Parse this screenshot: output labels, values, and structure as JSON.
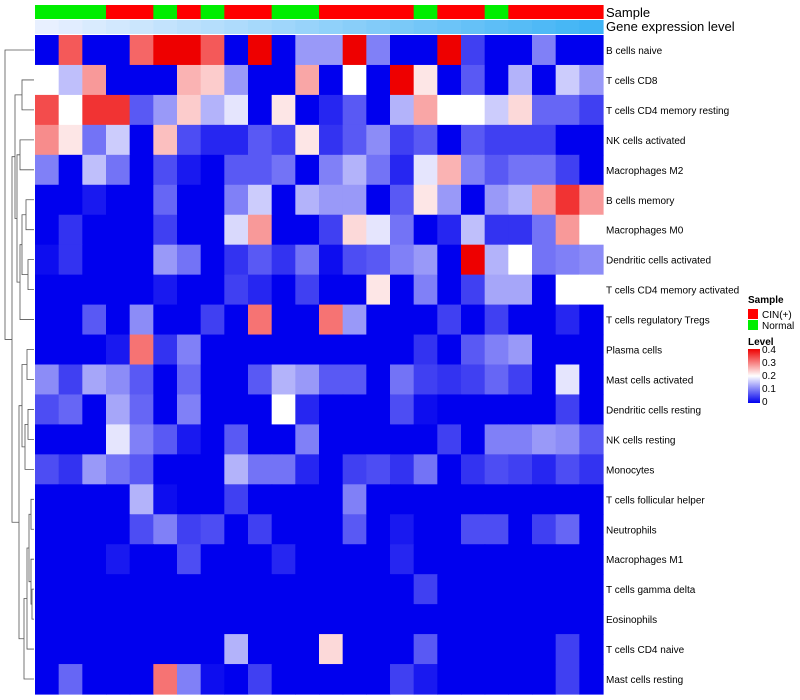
{
  "chart_data": {
    "type": "heatmap",
    "title": "",
    "annotation_tracks": [
      "Sample",
      "Gene expression level"
    ],
    "sample_groups": [
      "N",
      "N",
      "N",
      "C",
      "C",
      "N",
      "C",
      "N",
      "C",
      "C",
      "N",
      "N",
      "C",
      "C",
      "C",
      "C",
      "N",
      "C",
      "C",
      "N",
      "C",
      "C",
      "C",
      "C"
    ],
    "sample_colors": {
      "C": "#ff0000",
      "N": "#00ee00"
    },
    "rows": [
      "B cells naive",
      "T cells CD8",
      "T cells CD4 memory resting",
      "NK cells activated",
      "Macrophages M2",
      "B cells memory",
      "Macrophages M0",
      "Dendritic cells activated",
      "T cells CD4 memory activated",
      "T cells regulatory  Tregs",
      "Plasma cells",
      "Mast cells activated",
      "Dendritic cells resting",
      "NK cells resting",
      "Monocytes",
      "T cells follicular helper",
      "Neutrophils",
      "Macrophages M1",
      "T cells gamma delta",
      "Eosinophils",
      "T cells CD4 naive",
      "Mast cells resting"
    ],
    "values": [
      [
        0.0,
        0.33,
        0.0,
        0.0,
        0.32,
        0.4,
        0.4,
        0.33,
        0.0,
        0.4,
        0.0,
        0.12,
        0.12,
        0.4,
        0.1,
        0.0,
        0.0,
        0.4,
        0.05,
        0.0,
        0.0,
        0.1,
        0.0,
        0.0
      ],
      [
        0.2,
        0.15,
        0.28,
        0.0,
        0.0,
        0.0,
        0.26,
        0.24,
        0.12,
        0.0,
        0.0,
        0.27,
        0.0,
        0.2,
        0.0,
        0.4,
        0.22,
        0.0,
        0.07,
        0.0,
        0.14,
        0.0,
        0.16,
        0.12
      ],
      [
        0.34,
        0.2,
        0.36,
        0.36,
        0.07,
        0.12,
        0.24,
        0.14,
        0.18,
        0.0,
        0.22,
        0.0,
        0.03,
        0.07,
        0.0,
        0.14,
        0.27,
        0.2,
        0.2,
        0.16,
        0.23,
        0.08,
        0.08,
        0.05
      ],
      [
        0.29,
        0.22,
        0.09,
        0.16,
        0.0,
        0.25,
        0.06,
        0.03,
        0.03,
        0.07,
        0.05,
        0.22,
        0.04,
        0.07,
        0.11,
        0.05,
        0.07,
        0.0,
        0.07,
        0.05,
        0.05,
        0.05,
        0.0,
        0.0
      ],
      [
        0.1,
        0.0,
        0.15,
        0.09,
        0.0,
        0.06,
        0.02,
        0.0,
        0.07,
        0.07,
        0.09,
        0.0,
        0.1,
        0.14,
        0.09,
        0.03,
        0.18,
        0.26,
        0.1,
        0.07,
        0.09,
        0.09,
        0.05,
        0.0
      ],
      [
        0.0,
        0.0,
        0.02,
        0.0,
        0.0,
        0.08,
        0.0,
        0.0,
        0.1,
        0.16,
        0.0,
        0.14,
        0.12,
        0.12,
        0.0,
        0.07,
        0.22,
        0.12,
        0.0,
        0.12,
        0.14,
        0.28,
        0.36,
        0.28
      ],
      [
        0.0,
        0.04,
        0.0,
        0.0,
        0.0,
        0.05,
        0.0,
        0.0,
        0.17,
        0.28,
        0.0,
        0.0,
        0.05,
        0.23,
        0.18,
        0.09,
        0.0,
        0.03,
        0.15,
        0.04,
        0.04,
        0.09,
        0.28,
        0.2
      ],
      [
        0.01,
        0.04,
        0.0,
        0.0,
        0.0,
        0.12,
        0.09,
        0.0,
        0.04,
        0.07,
        0.04,
        0.09,
        0.01,
        0.06,
        0.07,
        0.1,
        0.12,
        0.0,
        0.4,
        0.14,
        0.2,
        0.09,
        0.1,
        0.11
      ],
      [
        0.0,
        0.0,
        0.0,
        0.0,
        0.0,
        0.02,
        0.0,
        0.0,
        0.05,
        0.03,
        0.0,
        0.05,
        0.0,
        0.0,
        0.22,
        0.0,
        0.1,
        0.0,
        0.05,
        0.13,
        0.13,
        0.0,
        0.2,
        0.2
      ],
      [
        0.0,
        0.0,
        0.07,
        0.0,
        0.11,
        0.0,
        0.0,
        0.05,
        0.0,
        0.31,
        0.0,
        0.0,
        0.31,
        0.12,
        0.0,
        0.0,
        0.0,
        0.05,
        0.0,
        0.05,
        0.0,
        0.0,
        0.03,
        0.0
      ],
      [
        0.0,
        0.0,
        0.0,
        0.02,
        0.31,
        0.04,
        0.1,
        0.0,
        0.0,
        0.0,
        0.0,
        0.0,
        0.0,
        0.0,
        0.0,
        0.0,
        0.04,
        0.0,
        0.07,
        0.1,
        0.12,
        0.0,
        0.0,
        0.0
      ],
      [
        0.11,
        0.05,
        0.13,
        0.11,
        0.07,
        0.0,
        0.08,
        0.0,
        0.0,
        0.07,
        0.14,
        0.12,
        0.07,
        0.07,
        0.0,
        0.09,
        0.05,
        0.04,
        0.05,
        0.08,
        0.05,
        0.0,
        0.18,
        0.0
      ],
      [
        0.06,
        0.08,
        0.0,
        0.13,
        0.08,
        0.0,
        0.1,
        0.0,
        0.0,
        0.0,
        0.2,
        0.03,
        0.0,
        0.0,
        0.0,
        0.06,
        0.01,
        0.0,
        0.0,
        0.0,
        0.0,
        0.0,
        0.05,
        0.0
      ],
      [
        0.0,
        0.0,
        0.0,
        0.18,
        0.1,
        0.07,
        0.02,
        0.0,
        0.07,
        0.0,
        0.0,
        0.1,
        0.0,
        0.0,
        0.0,
        0.0,
        0.0,
        0.05,
        0.0,
        0.1,
        0.1,
        0.12,
        0.11,
        0.07
      ],
      [
        0.06,
        0.04,
        0.12,
        0.09,
        0.07,
        0.0,
        0.0,
        0.0,
        0.14,
        0.09,
        0.09,
        0.03,
        0.0,
        0.05,
        0.06,
        0.04,
        0.09,
        0.0,
        0.04,
        0.06,
        0.05,
        0.03,
        0.06,
        0.04
      ],
      [
        0.0,
        0.0,
        0.0,
        0.0,
        0.14,
        0.01,
        0.0,
        0.0,
        0.05,
        0.0,
        0.0,
        0.0,
        0.0,
        0.1,
        0.0,
        0.0,
        0.0,
        0.0,
        0.0,
        0.0,
        0.0,
        0.0,
        0.0,
        0.0
      ],
      [
        0.0,
        0.0,
        0.0,
        0.0,
        0.06,
        0.1,
        0.05,
        0.06,
        0.0,
        0.05,
        0.0,
        0.0,
        0.0,
        0.07,
        0.0,
        0.02,
        0.0,
        0.0,
        0.06,
        0.06,
        0.0,
        0.05,
        0.08,
        0.0
      ],
      [
        0.0,
        0.0,
        0.0,
        0.02,
        0.0,
        0.0,
        0.06,
        0.0,
        0.0,
        0.0,
        0.03,
        0.0,
        0.0,
        0.0,
        0.0,
        0.03,
        0.0,
        0.0,
        0.0,
        0.0,
        0.0,
        0.0,
        0.0,
        0.0
      ],
      [
        0.0,
        0.0,
        0.0,
        0.0,
        0.0,
        0.0,
        0.0,
        0.0,
        0.0,
        0.0,
        0.0,
        0.0,
        0.0,
        0.0,
        0.0,
        0.0,
        0.05,
        0.0,
        0.0,
        0.0,
        0.0,
        0.0,
        0.0,
        0.0
      ],
      [
        0.0,
        0.0,
        0.0,
        0.0,
        0.0,
        0.0,
        0.0,
        0.0,
        0.0,
        0.0,
        0.0,
        0.0,
        0.0,
        0.0,
        0.0,
        0.0,
        0.0,
        0.0,
        0.0,
        0.0,
        0.0,
        0.0,
        0.0,
        0.0
      ],
      [
        0.0,
        0.0,
        0.0,
        0.0,
        0.0,
        0.0,
        0.0,
        0.0,
        0.14,
        0.0,
        0.0,
        0.0,
        0.23,
        0.0,
        0.0,
        0.0,
        0.07,
        0.0,
        0.0,
        0.0,
        0.0,
        0.0,
        0.05,
        0.0
      ],
      [
        0.0,
        0.08,
        0.0,
        0.0,
        0.0,
        0.31,
        0.1,
        0.01,
        0.0,
        0.05,
        0.0,
        0.0,
        0.0,
        0.0,
        0.0,
        0.05,
        0.02,
        0.0,
        0.0,
        0.0,
        0.0,
        0.0,
        0.05,
        0.0
      ]
    ],
    "color_scale": {
      "min": 0,
      "max": 0.4,
      "low": "#0000ee",
      "mid": "#ffffff",
      "high": "#ee0000",
      "mid_value": 0.2
    },
    "legends": {
      "sample": {
        "title": "Sample",
        "items": [
          {
            "label": "CIN(+)",
            "color": "#ff0000"
          },
          {
            "label": "Normal",
            "color": "#00ee00"
          }
        ]
      },
      "level": {
        "title": "Level",
        "ticks": [
          "0.4",
          "0.3",
          "0.2",
          "0.1",
          "0"
        ]
      }
    }
  }
}
